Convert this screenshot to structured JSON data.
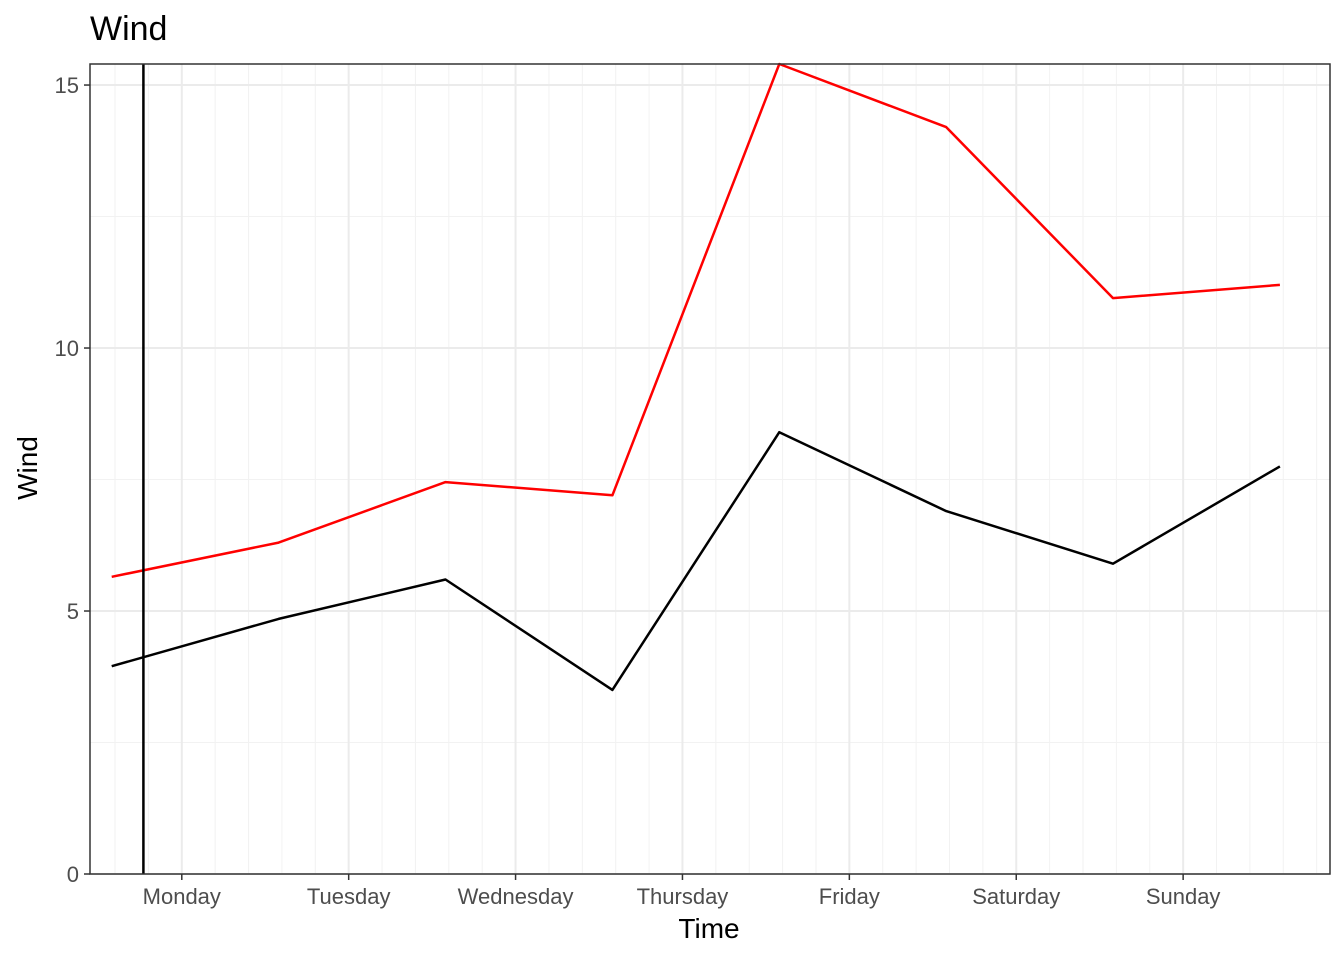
{
  "chart_data": {
    "type": "line",
    "title": "Wind",
    "xlabel": "Time",
    "ylabel": "Wind",
    "x_tick_labels": [
      "Monday",
      "Tuesday",
      "Wednesday",
      "Thursday",
      "Friday",
      "Saturday",
      "Sunday"
    ],
    "x_tick_positions": [
      1,
      2,
      3,
      4,
      5,
      6,
      7
    ],
    "xlim": [
      0.45,
      7.88
    ],
    "y_ticks": [
      0,
      5,
      10,
      15
    ],
    "ylim": [
      0,
      15.4
    ],
    "grid": true,
    "series": [
      {
        "color": "#ff0000",
        "x": [
          0.58,
          1.58,
          2.58,
          3.58,
          4.58,
          5.58,
          6.58,
          7.58
        ],
        "values": [
          5.65,
          6.3,
          7.45,
          7.2,
          15.4,
          14.2,
          10.95,
          11.2
        ]
      },
      {
        "color": "#000000",
        "x": [
          0.58,
          1.58,
          2.58,
          3.58,
          4.58,
          5.58,
          6.58,
          7.58
        ],
        "values": [
          3.95,
          4.85,
          5.6,
          3.5,
          8.4,
          6.9,
          5.9,
          7.75
        ]
      }
    ],
    "vertical_line": {
      "x": 0.77,
      "color": "#000000"
    }
  }
}
